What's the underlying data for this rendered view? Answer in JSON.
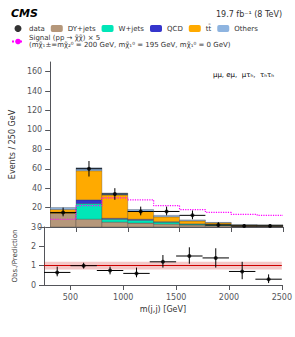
{
  "chart_data": [
    {
      "type": "bar",
      "title": "CMS",
      "subtitle": "19.7 fb⁻¹ (8 TeV)",
      "annotations": [
        "μμ, eμ,  μτₕ,  τₕτₕ"
      ],
      "ylabel": "Events / 250 GeV",
      "stacked": true,
      "legend": "top",
      "grid": false,
      "tick_labels": "y",
      "bins": [
        250,
        500,
        750,
        1000,
        1250,
        1500,
        1750,
        2000,
        2250,
        2500
      ],
      "xlim": [
        250,
        2500
      ],
      "xticks": [
        500,
        1000,
        1500,
        2000,
        2500
      ],
      "ylim": [
        0,
        170
      ],
      "yticks": [
        0,
        20,
        40,
        60,
        80,
        100,
        120,
        140,
        160
      ],
      "series": [
        {
          "name": "data",
          "type": "scatter",
          "marker": "circle",
          "color": "black",
          "x": [
            375,
            625,
            875,
            1125,
            1375,
            1625,
            1875,
            2125,
            2375
          ],
          "values": [
            15,
            60,
            34,
            16,
            16,
            12,
            2,
            1,
            1
          ],
          "yerr_lo": [
            4,
            8,
            6,
            4,
            4,
            4,
            2,
            1,
            1
          ],
          "yerr_hi": [
            5,
            8,
            6,
            5,
            5,
            5,
            3,
            2,
            2
          ],
          "xerr": [
            125,
            125,
            125,
            125,
            125,
            125,
            125,
            125,
            125
          ]
        },
        {
          "name": "DY+jets",
          "type": "bar",
          "color": "#b5977a",
          "values": [
            14,
            8,
            5,
            4,
            3,
            2,
            1.5,
            1,
            1
          ]
        },
        {
          "name": "W+jets",
          "type": "bar",
          "color": "#00e6b8",
          "values": [
            0,
            16,
            3,
            3,
            2,
            1,
            1,
            0.5,
            0.5
          ]
        },
        {
          "name": "QCD",
          "type": "bar",
          "color": "#3535cc",
          "values": [
            0,
            4,
            1,
            1,
            0.5,
            0.3,
            0.2,
            0.1,
            0.1
          ]
        },
        {
          "name": "tt̄",
          "type": "bar",
          "color": "#ffaa00",
          "values": [
            4,
            30,
            24,
            8,
            5,
            3,
            1.5,
            0.5,
            0.3
          ]
        },
        {
          "name": "Others",
          "type": "bar",
          "color": "#8eb4e0",
          "values": [
            2,
            3,
            2,
            2,
            1.5,
            1,
            0.5,
            0.3,
            0.2
          ]
        },
        {
          "name": "Signal (pp → χ̃χ̃) × 5\n(mχ̃₁±=mχ̃₂⁰ = 200 GeV, mχ̃₁⁰ = 195 GeV, mχ̃₁⁰ = 0 GeV)",
          "type": "line",
          "line_style": "dotted",
          "color": "#ff00ff",
          "values": [
            8,
            22,
            30,
            28,
            22,
            18,
            15,
            13,
            12
          ]
        }
      ]
    },
    {
      "type": "scatter",
      "xlabel": "m(j,j) [GeV]",
      "ylabel": "Obs./Prediction",
      "grid": false,
      "xlim": [
        250,
        2500
      ],
      "xticks": [
        500,
        1000,
        1500,
        2000,
        2500
      ],
      "ylim": [
        0,
        3
      ],
      "yticks": [
        0,
        1,
        2,
        3
      ],
      "band": {
        "values": [
          0.8,
          1.2
        ],
        "color": "#cc0000"
      },
      "reference_line": {
        "value": 1,
        "color": "#cc0000"
      },
      "series": [
        {
          "type": "scatter",
          "marker": "circle",
          "color": "black",
          "x": [
            375,
            625,
            875,
            1125,
            1375,
            1625,
            1875,
            2125,
            2375
          ],
          "values": [
            0.65,
            1.0,
            0.75,
            0.6,
            1.2,
            1.5,
            1.4,
            0.7,
            0.3
          ],
          "yerr_lo": [
            0.2,
            0.15,
            0.2,
            0.2,
            0.3,
            0.4,
            0.5,
            0.4,
            0.2
          ],
          "yerr_hi": [
            0.3,
            0.15,
            0.2,
            0.3,
            0.35,
            0.45,
            0.5,
            0.5,
            0.25
          ],
          "xerr": [
            125,
            125,
            125,
            125,
            125,
            125,
            125,
            125,
            125
          ]
        }
      ]
    }
  ]
}
